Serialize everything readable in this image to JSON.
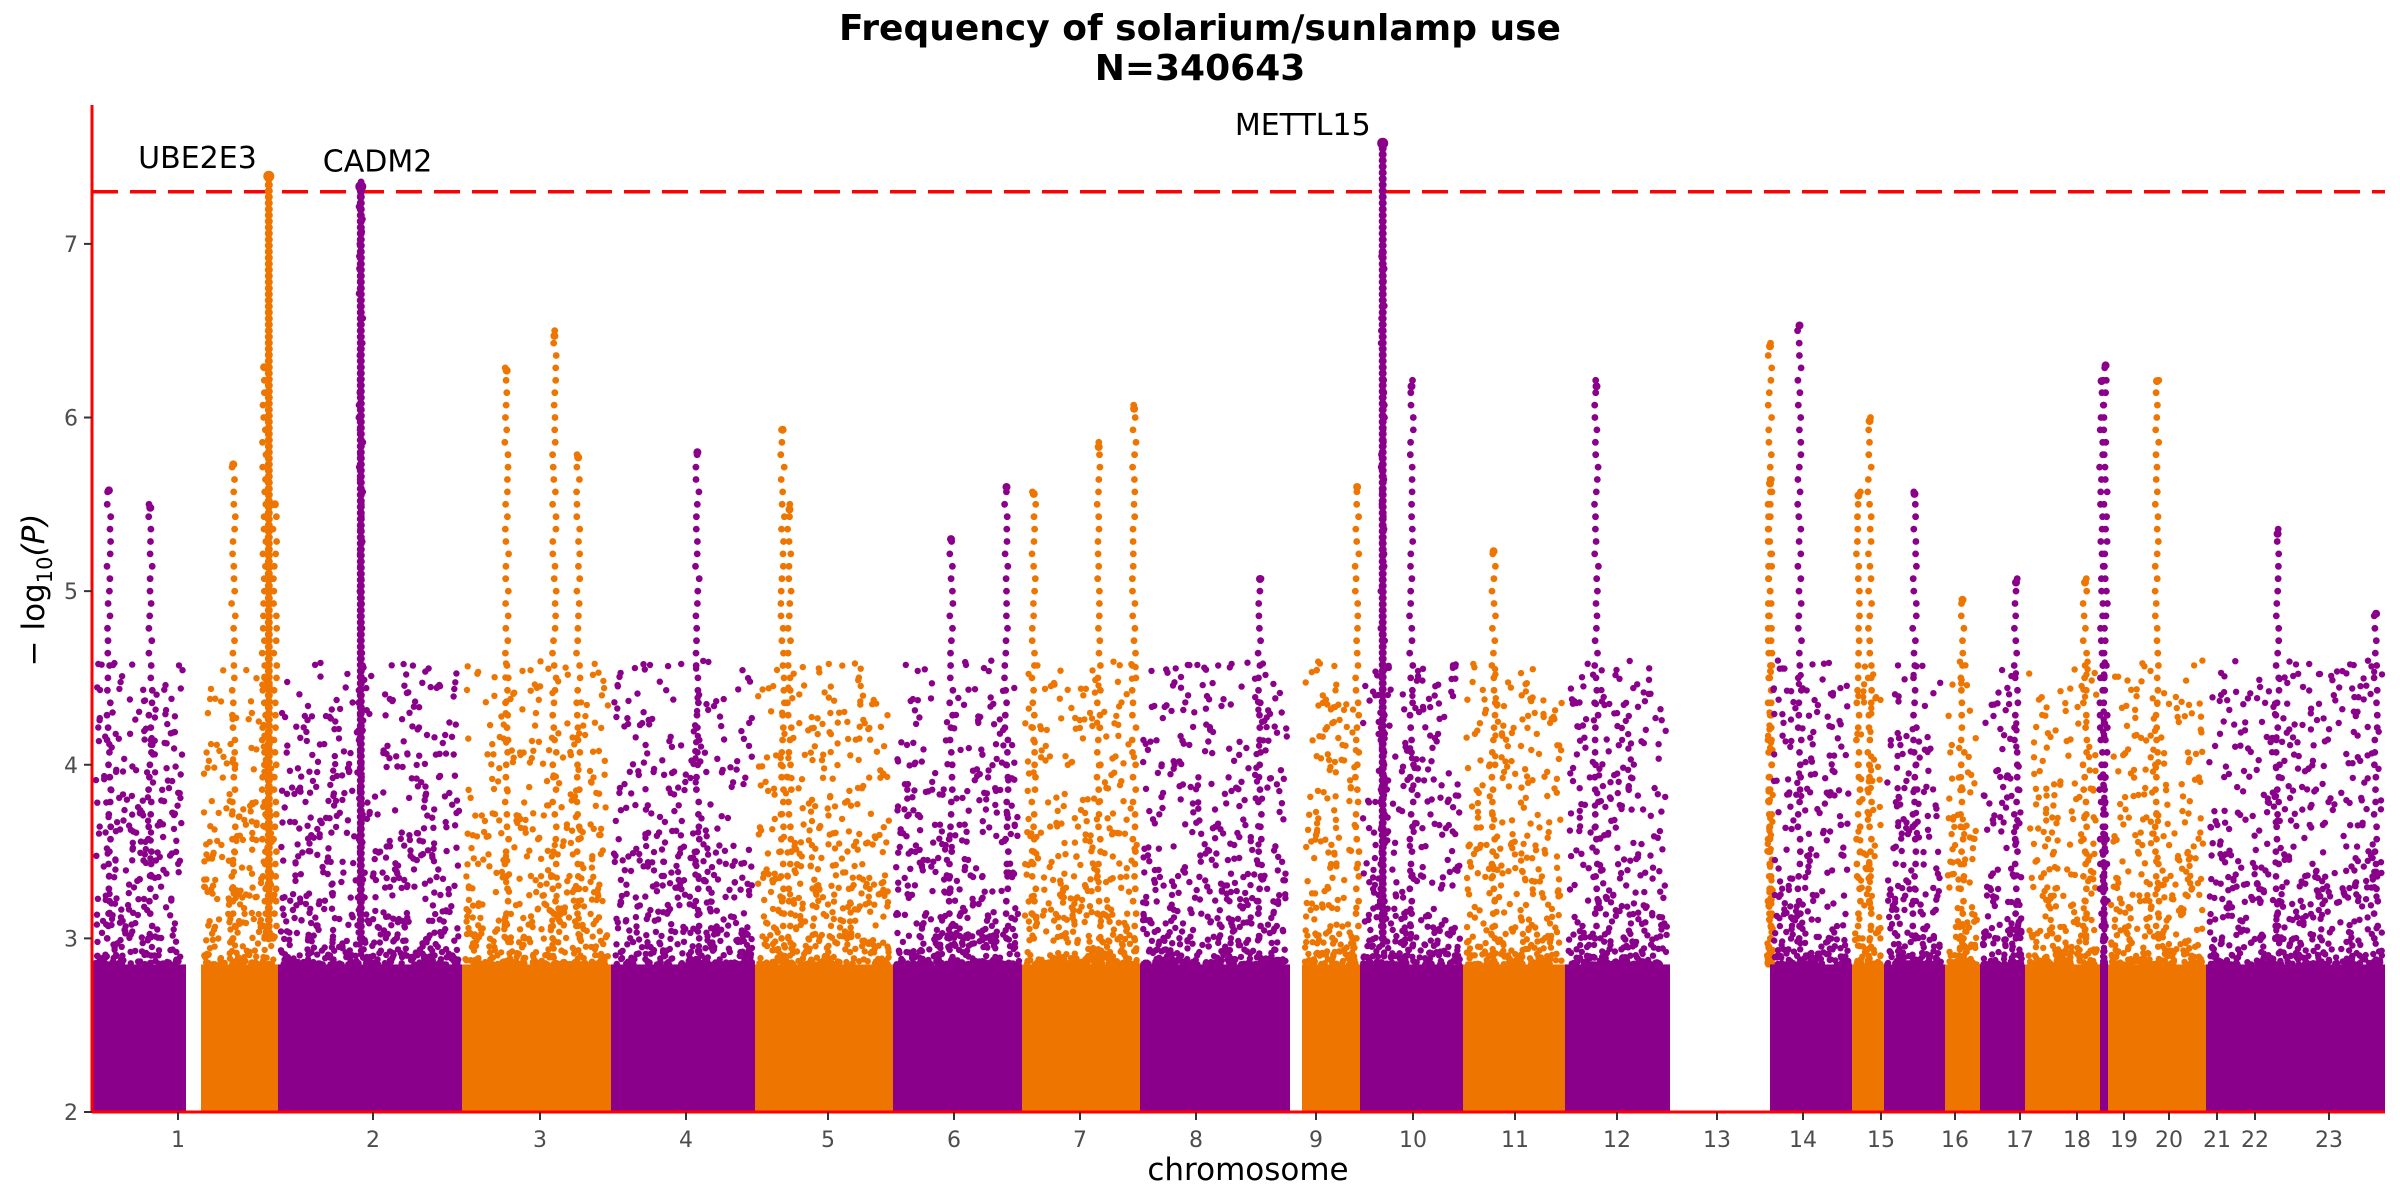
{
  "chart_data": {
    "type": "scatter",
    "title": "Frequency of solarium/sunlamp use",
    "subtitle": "N=340643",
    "xlabel": "chromosome",
    "ylabel_prefix": "− log",
    "ylabel_sub": "10",
    "ylabel_suffix": "(P)",
    "ylim": [
      2,
      7.8
    ],
    "yticks": [
      2,
      3,
      4,
      5,
      6,
      7
    ],
    "grid": false,
    "significance_line": 7.3,
    "colors": {
      "odd": "#8B008B",
      "even": "#EE7600",
      "threshold": "#FF0000",
      "axis": "#FF0000"
    },
    "chromosomes": [
      {
        "label": "1",
        "top": 5.58,
        "peaks": [
          [
            0.18,
            5.58
          ],
          [
            0.62,
            5.48
          ]
        ]
      },
      {
        "label": "2",
        "top": 6.29,
        "peaks": [
          [
            0.42,
            5.73
          ],
          [
            0.82,
            6.29
          ],
          [
            0.96,
            5.5
          ]
        ]
      },
      {
        "label": "3",
        "top": 7.33,
        "peaks": [
          [
            0.45,
            7.33
          ]
        ]
      },
      {
        "label": "4",
        "top": 6.47,
        "peaks": [
          [
            0.3,
            6.27
          ],
          [
            0.62,
            6.47
          ],
          [
            0.78,
            5.77
          ]
        ]
      },
      {
        "label": "5",
        "top": 5.8,
        "peaks": [
          [
            0.6,
            5.8
          ]
        ]
      },
      {
        "label": "6",
        "top": 5.93,
        "peaks": [
          [
            0.2,
            5.93
          ],
          [
            0.25,
            5.47
          ]
        ]
      },
      {
        "label": "7",
        "top": 5.6,
        "peaks": [
          [
            0.45,
            5.3
          ],
          [
            0.88,
            5.6
          ]
        ]
      },
      {
        "label": "8",
        "top": 6.05,
        "peaks": [
          [
            0.1,
            5.56
          ],
          [
            0.65,
            5.83
          ],
          [
            0.95,
            6.05
          ]
        ]
      },
      {
        "label": "9",
        "top": 5.07,
        "peaks": [
          [
            0.8,
            5.07
          ]
        ]
      },
      {
        "label": "10",
        "top": 5.6,
        "peaks": [
          [
            0.95,
            5.6
          ]
        ]
      },
      {
        "label": "11",
        "top": 6.95,
        "peaks": [
          [
            0.22,
            6.95
          ],
          [
            0.5,
            6.18
          ]
        ]
      },
      {
        "label": "12",
        "top": 5.23,
        "peaks": [
          [
            0.3,
            5.23
          ]
        ]
      },
      {
        "label": "13",
        "top": 6.18,
        "peaks": [
          [
            0.3,
            6.18
          ]
        ]
      },
      {
        "label": "14",
        "top": 6.41,
        "peaks": [
          [
            0.15,
            6.41
          ],
          [
            0.5,
            5.62
          ]
        ]
      },
      {
        "label": "15",
        "top": 6.53,
        "peaks": [
          [
            0.36,
            6.53
          ]
        ]
      },
      {
        "label": "16",
        "top": 5.98,
        "peaks": [
          [
            0.2,
            5.55
          ],
          [
            0.55,
            5.98
          ]
        ]
      },
      {
        "label": "17",
        "top": 5.56,
        "peaks": [
          [
            0.5,
            5.56
          ]
        ]
      },
      {
        "label": "18",
        "top": 4.95,
        "peaks": [
          [
            0.5,
            4.95
          ]
        ]
      },
      {
        "label": "19",
        "top": 5.05,
        "peaks": [
          [
            0.8,
            5.05
          ]
        ]
      },
      {
        "label": "20",
        "top": 5.05,
        "peaks": [
          [
            0.8,
            5.05
          ]
        ]
      },
      {
        "label": "21",
        "top": 6.3,
        "peaks": [
          [
            0.2,
            6.21
          ],
          [
            0.7,
            6.3
          ]
        ]
      },
      {
        "label": "22",
        "top": 6.21,
        "peaks": [
          [
            0.5,
            6.21
          ]
        ]
      },
      {
        "label": "23",
        "top": 5.33,
        "peaks": [
          [
            0.4,
            5.33
          ],
          [
            0.95,
            4.87
          ]
        ]
      }
    ],
    "annotations": [
      {
        "label": "UBE2E3",
        "chromosome": "2",
        "frac": 0.88,
        "y": 7.39
      },
      {
        "label": "CADM2",
        "chromosome": "3",
        "frac": 0.45,
        "y": 7.33
      },
      {
        "label": "METTL15",
        "chromosome": "11",
        "frac": 0.22,
        "y": 7.58
      }
    ]
  }
}
